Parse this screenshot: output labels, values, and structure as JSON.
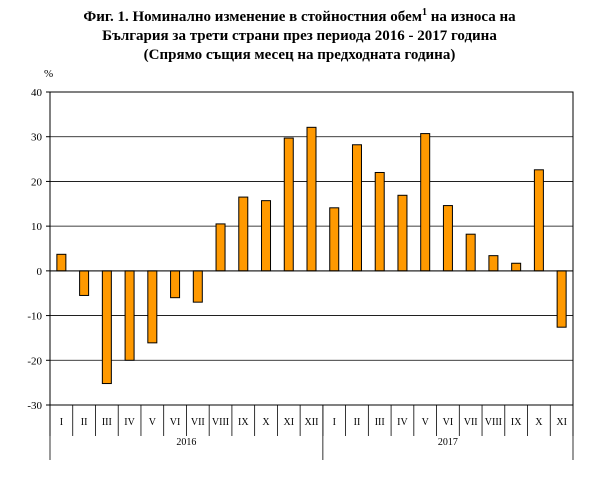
{
  "title": {
    "line1_main": "Фиг. 1. Номинално изменение в стойностния обем",
    "line1_sup": "1",
    "line1_tail": " на износа на",
    "line2": "България за трети страни през периода 2016 - 2017 година",
    "line3": "(Спрямо същия месец на предходната година)"
  },
  "chart_data": {
    "type": "bar",
    "ylabel": "%",
    "ylim": [
      -30,
      40
    ],
    "yticks": [
      -30,
      -20,
      -10,
      0,
      10,
      20,
      30,
      40
    ],
    "grid": true,
    "bar_color": "#FF9900",
    "categories": [
      "I",
      "II",
      "III",
      "IV",
      "V",
      "VI",
      "VII",
      "VIII",
      "IX",
      "X",
      "XI",
      "XII",
      "I",
      "II",
      "III",
      "IV",
      "V",
      "VI",
      "VII",
      "VIII",
      "IX",
      "X",
      "XI"
    ],
    "groups": [
      {
        "label": "2016",
        "count": 12
      },
      {
        "label": "2017",
        "count": 11
      }
    ],
    "values": [
      3.7,
      -5.5,
      -25.2,
      -20.0,
      -16.1,
      -6.0,
      -7.0,
      10.5,
      16.5,
      15.7,
      29.7,
      32.1,
      14.1,
      28.2,
      22.0,
      16.9,
      30.7,
      14.6,
      8.2,
      3.4,
      1.7,
      22.6,
      -12.6
    ]
  }
}
